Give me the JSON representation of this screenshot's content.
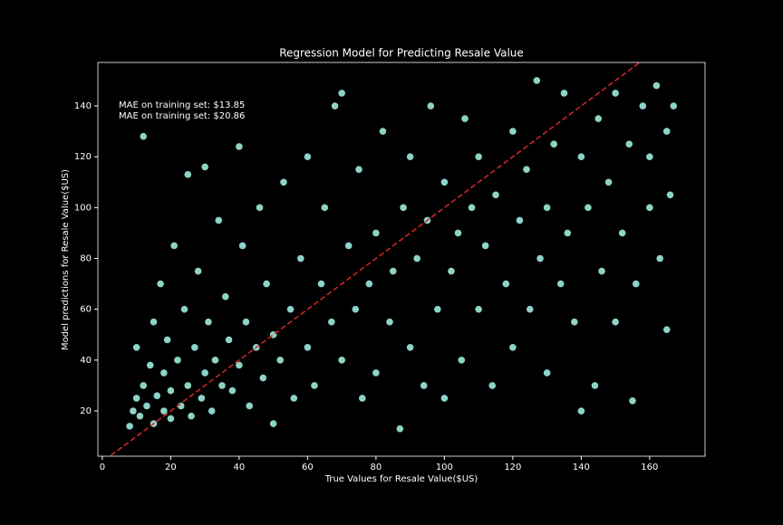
{
  "chart_data": {
    "type": "scatter",
    "title": "Regression Model for Predicting Resale Value",
    "x_label": "True Values for Resale Value($US)",
    "y_label": "Model predictions for Resale Value($US)",
    "annotations": [
      "MAE on training set: $13.85",
      "MAE on training set: $20.86"
    ],
    "identity_line": {
      "color": "#d62728",
      "dashed": true
    },
    "xlim": [
      -1.3,
      176.2
    ],
    "ylim": [
      2.2,
      157.1
    ],
    "xticks": [
      0,
      20,
      40,
      60,
      80,
      100,
      120,
      140,
      160
    ],
    "yticks": [
      20,
      40,
      60,
      80,
      100,
      120,
      140
    ],
    "series": [
      {
        "color": "#8dd3c7",
        "x": [
          8,
          9,
          10,
          10,
          11,
          12,
          12,
          13,
          14,
          15,
          15,
          16,
          17,
          18,
          18,
          19,
          20,
          20,
          21,
          22,
          23,
          24,
          25,
          25,
          26,
          27,
          28,
          29,
          30,
          30,
          31,
          32,
          33,
          34,
          35,
          36,
          37,
          38,
          40,
          40,
          41,
          42,
          43,
          45,
          46,
          47,
          48,
          50,
          50,
          52,
          53,
          55,
          56,
          58,
          60,
          60,
          62,
          64,
          65,
          67,
          68,
          70,
          70,
          72,
          74,
          75,
          76,
          78,
          80,
          80,
          82,
          84,
          85,
          87,
          88,
          90,
          90,
          92,
          94,
          95,
          96,
          98,
          100,
          100,
          102,
          104,
          105,
          106,
          108,
          110,
          110,
          112,
          114,
          115,
          118,
          120,
          120,
          122,
          124,
          125,
          127,
          128,
          130,
          130,
          132,
          134,
          135,
          136,
          138,
          140,
          140,
          142,
          144,
          145,
          146,
          148,
          150,
          150,
          152,
          154,
          155,
          156,
          158,
          160,
          160,
          162,
          163,
          165,
          165,
          166,
          167
        ],
        "values": [
          14,
          20,
          25,
          45,
          18,
          30,
          128,
          22,
          38,
          15,
          55,
          26,
          70,
          20,
          35,
          48,
          17,
          28,
          85,
          40,
          22,
          60,
          30,
          113,
          18,
          45,
          75,
          25,
          35,
          116,
          55,
          20,
          40,
          95,
          30,
          65,
          48,
          28,
          38,
          124,
          85,
          55,
          22,
          45,
          100,
          33,
          70,
          50,
          15,
          40,
          110,
          60,
          25,
          80,
          45,
          120,
          30,
          70,
          100,
          55,
          140,
          145,
          40,
          85,
          60,
          115,
          25,
          70,
          90,
          35,
          130,
          55,
          75,
          13,
          100,
          45,
          120,
          80,
          30,
          95,
          140,
          60,
          110,
          25,
          75,
          90,
          40,
          135,
          100,
          60,
          120,
          85,
          30,
          105,
          70,
          130,
          45,
          95,
          115,
          60,
          150,
          80,
          100,
          35,
          125,
          70,
          145,
          90,
          55,
          120,
          20,
          100,
          30,
          135,
          75,
          110,
          145,
          55,
          90,
          125,
          24,
          70,
          140,
          100,
          120,
          148,
          80,
          52,
          130,
          105,
          140
        ]
      }
    ]
  }
}
